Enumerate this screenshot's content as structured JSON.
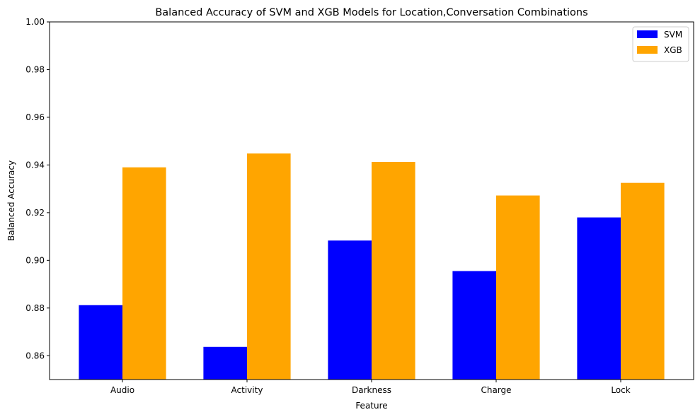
{
  "chart_data": {
    "type": "bar",
    "title": "Balanced Accuracy of SVM and XGB Models for Location,Conversation Combinations",
    "xlabel": "Feature",
    "ylabel": "Balanced Accuracy",
    "categories": [
      "Audio",
      "Activity",
      "Darkness",
      "Charge",
      "Lock"
    ],
    "series": [
      {
        "name": "SVM",
        "color": "#0000ff",
        "values": [
          0.8812,
          0.8637,
          0.9083,
          0.8955,
          0.918
        ]
      },
      {
        "name": "XGB",
        "color": "#ffa500",
        "values": [
          0.939,
          0.9448,
          0.9413,
          0.9272,
          0.9325
        ]
      }
    ],
    "ylim": [
      0.85,
      1.0
    ],
    "yticks": [
      0.86,
      0.88,
      0.9,
      0.92,
      0.94,
      0.96,
      0.98,
      1.0
    ],
    "ytick_labels": [
      "0.86",
      "0.88",
      "0.90",
      "0.92",
      "0.94",
      "0.96",
      "0.98",
      "1.00"
    ],
    "grid": false,
    "legend_position": "top-right"
  }
}
